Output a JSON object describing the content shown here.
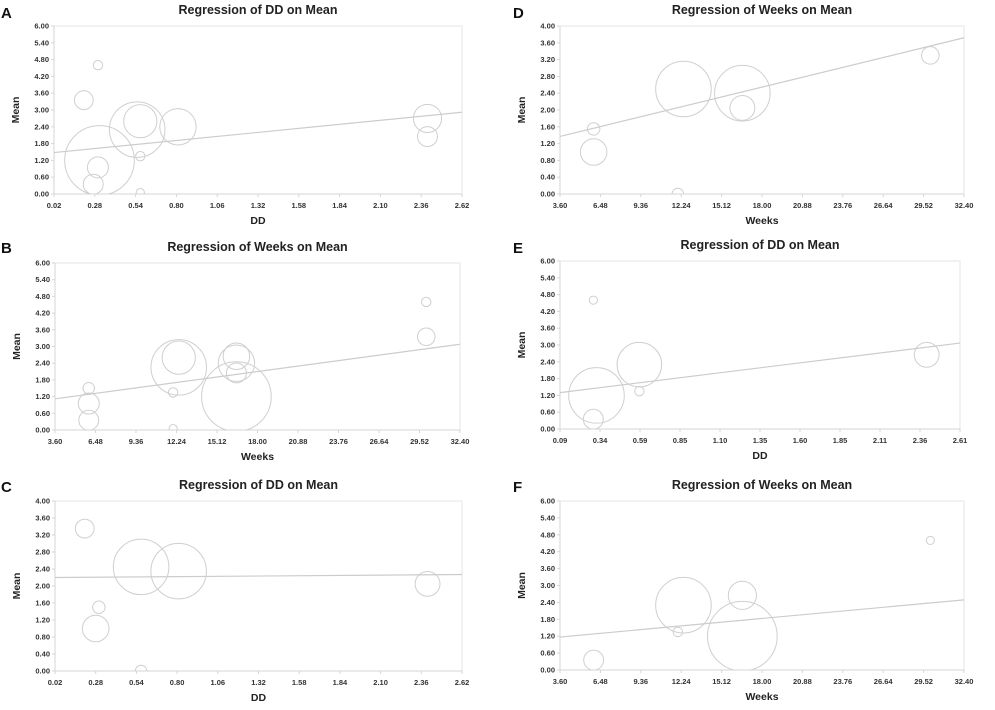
{
  "figure": {
    "colors": {
      "bubble": "#cfcfcf",
      "line": "#cccccc",
      "text": "#222222"
    }
  },
  "chart_data": [
    {
      "panel": "A",
      "type": "scatter",
      "title": "Regression of DD on Mean",
      "xlabel": "DD",
      "ylabel": "Mean",
      "xlim": [
        0.02,
        2.62
      ],
      "ylim": [
        0,
        6
      ],
      "xticks": [
        "0.02",
        "0.28",
        "0.54",
        "0.80",
        "1.06",
        "1.32",
        "1.58",
        "1.84",
        "2.10",
        "2.36",
        "2.62"
      ],
      "yticks": [
        "0.00",
        "0.60",
        "1.20",
        "1.80",
        "2.40",
        "3.00",
        "3.60",
        "4.20",
        "4.80",
        "5.40",
        "6.00"
      ],
      "points": [
        {
          "x": 0.3,
          "y": 4.6,
          "w": 0.2
        },
        {
          "x": 0.21,
          "y": 3.35,
          "w": 0.8
        },
        {
          "x": 0.31,
          "y": 1.2,
          "w": 11
        },
        {
          "x": 0.3,
          "y": 0.95,
          "w": 1.0
        },
        {
          "x": 0.27,
          "y": 0.35,
          "w": 0.9
        },
        {
          "x": 0.55,
          "y": 2.3,
          "w": 7
        },
        {
          "x": 0.57,
          "y": 2.6,
          "w": 2.5
        },
        {
          "x": 0.57,
          "y": 1.35,
          "w": 0.2
        },
        {
          "x": 0.57,
          "y": 0.05,
          "w": 0.15
        },
        {
          "x": 0.81,
          "y": 2.4,
          "w": 3
        },
        {
          "x": 2.4,
          "y": 2.7,
          "w": 1.8
        },
        {
          "x": 2.4,
          "y": 2.05,
          "w": 0.9
        }
      ],
      "regression": {
        "x": [
          0.02,
          2.62
        ],
        "y": [
          1.48,
          2.92
        ]
      }
    },
    {
      "panel": "B",
      "type": "scatter",
      "title": "Regression of Weeks on Mean",
      "xlabel": "Weeks",
      "ylabel": "Mean",
      "xlim": [
        3.6,
        32.4
      ],
      "ylim": [
        0,
        6
      ],
      "xticks": [
        "3.60",
        "6.48",
        "9.36",
        "12.24",
        "15.12",
        "18.00",
        "20.88",
        "23.76",
        "26.64",
        "29.52",
        "32.40"
      ],
      "yticks": [
        "0.00",
        "0.60",
        "1.20",
        "1.80",
        "2.40",
        "3.00",
        "3.60",
        "4.20",
        "4.80",
        "5.40",
        "6.00"
      ],
      "points": [
        {
          "x": 30.0,
          "y": 4.6,
          "w": 0.2
        },
        {
          "x": 30.0,
          "y": 3.35,
          "w": 0.7
        },
        {
          "x": 6.0,
          "y": 1.5,
          "w": 0.3
        },
        {
          "x": 6.0,
          "y": 0.95,
          "w": 1.0
        },
        {
          "x": 6.0,
          "y": 0.35,
          "w": 0.9
        },
        {
          "x": 12.4,
          "y": 2.25,
          "w": 7
        },
        {
          "x": 12.4,
          "y": 2.6,
          "w": 2.5
        },
        {
          "x": 12.0,
          "y": 1.35,
          "w": 0.2
        },
        {
          "x": 12.0,
          "y": 0.05,
          "w": 0.15
        },
        {
          "x": 16.5,
          "y": 2.4,
          "w": 3
        },
        {
          "x": 16.5,
          "y": 2.65,
          "w": 1.6
        },
        {
          "x": 16.5,
          "y": 2.05,
          "w": 0.9
        },
        {
          "x": 16.5,
          "y": 1.2,
          "w": 11
        }
      ],
      "regression": {
        "x": [
          3.6,
          32.4
        ],
        "y": [
          1.12,
          3.08
        ]
      }
    },
    {
      "panel": "C",
      "type": "scatter",
      "title": "Regression of DD on Mean",
      "xlabel": "DD",
      "ylabel": "Mean",
      "xlim": [
        0.02,
        2.62
      ],
      "ylim": [
        0,
        4
      ],
      "xticks": [
        "0.02",
        "0.28",
        "0.54",
        "0.80",
        "1.06",
        "1.32",
        "1.58",
        "1.84",
        "2.10",
        "2.36",
        "2.62"
      ],
      "yticks": [
        "0.00",
        "0.40",
        "0.80",
        "1.20",
        "1.60",
        "2.00",
        "2.40",
        "2.80",
        "3.20",
        "3.60",
        "4.00"
      ],
      "points": [
        {
          "x": 0.21,
          "y": 3.35,
          "w": 0.8
        },
        {
          "x": 0.3,
          "y": 1.5,
          "w": 0.35
        },
        {
          "x": 0.28,
          "y": 1.0,
          "w": 1.6
        },
        {
          "x": 0.57,
          "y": 0.0,
          "w": 0.3
        },
        {
          "x": 0.57,
          "y": 2.45,
          "w": 7
        },
        {
          "x": 0.81,
          "y": 2.35,
          "w": 7
        },
        {
          "x": 2.4,
          "y": 2.05,
          "w": 1.4
        }
      ],
      "regression": {
        "x": [
          0.02,
          2.62
        ],
        "y": [
          2.2,
          2.27
        ]
      }
    },
    {
      "panel": "D",
      "type": "scatter",
      "title": "Regression of Weeks on Mean",
      "xlabel": "Weeks",
      "ylabel": "Mean",
      "xlim": [
        3.6,
        32.4
      ],
      "ylim": [
        0,
        4
      ],
      "xticks": [
        "3.60",
        "6.48",
        "9.36",
        "12.24",
        "15.12",
        "18.00",
        "20.88",
        "23.76",
        "26.64",
        "29.52",
        "32.40"
      ],
      "yticks": [
        "0.00",
        "0.40",
        "0.80",
        "1.20",
        "1.60",
        "2.00",
        "2.40",
        "2.80",
        "3.20",
        "3.60",
        "4.00"
      ],
      "points": [
        {
          "x": 30.0,
          "y": 3.3,
          "w": 0.7
        },
        {
          "x": 6.0,
          "y": 1.55,
          "w": 0.35
        },
        {
          "x": 6.0,
          "y": 1.0,
          "w": 1.6
        },
        {
          "x": 12.0,
          "y": 0.0,
          "w": 0.3
        },
        {
          "x": 12.4,
          "y": 2.5,
          "w": 7
        },
        {
          "x": 16.6,
          "y": 2.4,
          "w": 7
        },
        {
          "x": 16.6,
          "y": 2.05,
          "w": 1.4
        }
      ],
      "regression": {
        "x": [
          3.6,
          32.4
        ],
        "y": [
          1.37,
          3.72
        ]
      }
    },
    {
      "panel": "E",
      "type": "scatter",
      "title": "Regression of DD on Mean",
      "xlabel": "DD",
      "ylabel": "Mean",
      "xlim": [
        0.09,
        2.61
      ],
      "ylim": [
        0,
        6
      ],
      "xticks": [
        "0.09",
        "0.34",
        "0.59",
        "0.85",
        "1.10",
        "1.35",
        "1.60",
        "1.85",
        "2.11",
        "2.36",
        "2.61"
      ],
      "yticks": [
        "0.00",
        "0.60",
        "1.20",
        "1.80",
        "2.40",
        "3.00",
        "3.60",
        "4.20",
        "4.80",
        "5.40",
        "6.00"
      ],
      "points": [
        {
          "x": 0.3,
          "y": 4.6,
          "w": 0.15
        },
        {
          "x": 0.32,
          "y": 1.2,
          "w": 7
        },
        {
          "x": 0.3,
          "y": 0.35,
          "w": 0.9
        },
        {
          "x": 0.59,
          "y": 1.35,
          "w": 0.2
        },
        {
          "x": 0.59,
          "y": 2.3,
          "w": 4.5
        },
        {
          "x": 2.4,
          "y": 2.65,
          "w": 1.4
        }
      ],
      "regression": {
        "x": [
          0.09,
          2.61
        ],
        "y": [
          1.3,
          3.07
        ]
      }
    },
    {
      "panel": "F",
      "type": "scatter",
      "title": "Regression of Weeks on Mean",
      "xlabel": "Weeks",
      "ylabel": "Mean",
      "xlim": [
        3.6,
        32.4
      ],
      "ylim": [
        0,
        6
      ],
      "xticks": [
        "3.60",
        "6.48",
        "9.36",
        "12.24",
        "15.12",
        "18.00",
        "20.88",
        "23.76",
        "26.64",
        "29.52",
        "32.40"
      ],
      "yticks": [
        "0.00",
        "0.60",
        "1.20",
        "1.80",
        "2.40",
        "3.00",
        "3.60",
        "4.20",
        "4.80",
        "5.40",
        "6.00"
      ],
      "points": [
        {
          "x": 30.0,
          "y": 4.6,
          "w": 0.15
        },
        {
          "x": 6.0,
          "y": 0.35,
          "w": 0.9
        },
        {
          "x": 12.0,
          "y": 1.35,
          "w": 0.2
        },
        {
          "x": 12.4,
          "y": 2.3,
          "w": 7
        },
        {
          "x": 16.6,
          "y": 2.65,
          "w": 1.8
        },
        {
          "x": 16.6,
          "y": 1.2,
          "w": 11
        }
      ],
      "regression": {
        "x": [
          3.6,
          32.4
        ],
        "y": [
          1.17,
          2.49
        ]
      }
    }
  ]
}
